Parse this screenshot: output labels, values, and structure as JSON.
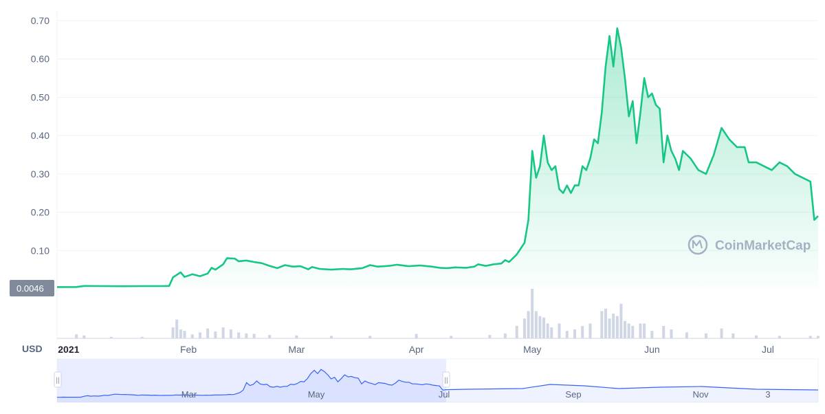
{
  "currency_label": "USD",
  "watermark": "CoinMarketCap",
  "current_price_tag": "0.0046",
  "colors": {
    "line": "#16c784",
    "fill": "#16c784",
    "volume_bar": "#cfd6e4",
    "price_tag_bg": "#808a9d",
    "navigator_line": "#3861fb",
    "navigator_selected": "#e0e6ff",
    "grid": "#eff2f5"
  },
  "chart_data": {
    "type": "area",
    "title": "",
    "xlabel": "",
    "ylabel": "",
    "ylim": [
      0,
      0.7
    ],
    "yticks": [
      0.1,
      0.2,
      0.3,
      0.4,
      0.5,
      0.6,
      0.7
    ],
    "ytick_labels": [
      "0.10",
      "0.20",
      "0.30",
      "0.40",
      "0.50",
      "0.60",
      "0.70"
    ],
    "xlim": [
      "2020-12-29",
      "2021-07-14"
    ],
    "xticks": [
      {
        "date": "2021-01-01",
        "label": "2021",
        "bold": true
      },
      {
        "date": "2021-02-01",
        "label": "Feb"
      },
      {
        "date": "2021-03-01",
        "label": "Mar"
      },
      {
        "date": "2021-04-01",
        "label": "Apr"
      },
      {
        "date": "2021-05-01",
        "label": "May"
      },
      {
        "date": "2021-06-01",
        "label": "Jun"
      },
      {
        "date": "2021-07-01",
        "label": "Jul"
      }
    ],
    "grid": true,
    "legend": "none",
    "series": [
      {
        "values": [
          [
            "2020-12-29",
            0.0046
          ],
          [
            "2021-01-03",
            0.0048
          ],
          [
            "2021-01-05",
            0.0075
          ],
          [
            "2021-01-10",
            0.0072
          ],
          [
            "2021-01-15",
            0.0068
          ],
          [
            "2021-01-20",
            0.0071
          ],
          [
            "2021-01-25",
            0.0072
          ],
          [
            "2021-01-27",
            0.0075
          ],
          [
            "2021-01-28",
            0.03
          ],
          [
            "2021-01-30",
            0.043
          ],
          [
            "2021-01-31",
            0.031
          ],
          [
            "2021-02-02",
            0.038
          ],
          [
            "2021-02-04",
            0.033
          ],
          [
            "2021-02-06",
            0.04
          ],
          [
            "2021-02-07",
            0.055
          ],
          [
            "2021-02-08",
            0.05
          ],
          [
            "2021-02-10",
            0.064
          ],
          [
            "2021-02-11",
            0.08
          ],
          [
            "2021-02-13",
            0.079
          ],
          [
            "2021-02-14",
            0.072
          ],
          [
            "2021-02-16",
            0.074
          ],
          [
            "2021-02-18",
            0.07
          ],
          [
            "2021-02-20",
            0.067
          ],
          [
            "2021-02-22",
            0.06
          ],
          [
            "2021-02-24",
            0.054
          ],
          [
            "2021-02-26",
            0.062
          ],
          [
            "2021-02-28",
            0.058
          ],
          [
            "2021-03-02",
            0.059
          ],
          [
            "2021-03-04",
            0.051
          ],
          [
            "2021-03-05",
            0.057
          ],
          [
            "2021-03-07",
            0.052
          ],
          [
            "2021-03-10",
            0.05
          ],
          [
            "2021-03-13",
            0.052
          ],
          [
            "2021-03-15",
            0.051
          ],
          [
            "2021-03-18",
            0.054
          ],
          [
            "2021-03-20",
            0.062
          ],
          [
            "2021-03-22",
            0.058
          ],
          [
            "2021-03-25",
            0.06
          ],
          [
            "2021-03-27",
            0.063
          ],
          [
            "2021-03-30",
            0.059
          ],
          [
            "2021-04-02",
            0.061
          ],
          [
            "2021-04-05",
            0.058
          ],
          [
            "2021-04-07",
            0.055
          ],
          [
            "2021-04-09",
            0.054
          ],
          [
            "2021-04-11",
            0.056
          ],
          [
            "2021-04-14",
            0.055
          ],
          [
            "2021-04-16",
            0.058
          ],
          [
            "2021-04-17",
            0.064
          ],
          [
            "2021-04-19",
            0.06
          ],
          [
            "2021-04-21",
            0.064
          ],
          [
            "2021-04-23",
            0.066
          ],
          [
            "2021-04-24",
            0.075
          ],
          [
            "2021-04-25",
            0.07
          ],
          [
            "2021-04-27",
            0.09
          ],
          [
            "2021-04-29",
            0.12
          ],
          [
            "2021-04-30",
            0.18
          ],
          [
            "2021-05-01",
            0.36
          ],
          [
            "2021-05-02",
            0.29
          ],
          [
            "2021-05-03",
            0.32
          ],
          [
            "2021-05-04",
            0.4
          ],
          [
            "2021-05-05",
            0.33
          ],
          [
            "2021-05-06",
            0.31
          ],
          [
            "2021-05-07",
            0.32
          ],
          [
            "2021-05-08",
            0.26
          ],
          [
            "2021-05-09",
            0.25
          ],
          [
            "2021-05-10",
            0.27
          ],
          [
            "2021-05-11",
            0.25
          ],
          [
            "2021-05-12",
            0.27
          ],
          [
            "2021-05-13",
            0.27
          ],
          [
            "2021-05-14",
            0.32
          ],
          [
            "2021-05-15",
            0.31
          ],
          [
            "2021-05-16",
            0.34
          ],
          [
            "2021-05-17",
            0.39
          ],
          [
            "2021-05-18",
            0.38
          ],
          [
            "2021-05-19",
            0.46
          ],
          [
            "2021-05-20",
            0.58
          ],
          [
            "2021-05-21",
            0.66
          ],
          [
            "2021-05-22",
            0.58
          ],
          [
            "2021-05-23",
            0.68
          ],
          [
            "2021-05-24",
            0.63
          ],
          [
            "2021-05-25",
            0.55
          ],
          [
            "2021-05-26",
            0.45
          ],
          [
            "2021-05-27",
            0.49
          ],
          [
            "2021-05-28",
            0.38
          ],
          [
            "2021-05-29",
            0.46
          ],
          [
            "2021-05-30",
            0.55
          ],
          [
            "2021-05-31",
            0.5
          ],
          [
            "2021-06-01",
            0.51
          ],
          [
            "2021-06-02",
            0.48
          ],
          [
            "2021-06-03",
            0.47
          ],
          [
            "2021-06-04",
            0.33
          ],
          [
            "2021-06-05",
            0.4
          ],
          [
            "2021-06-06",
            0.36
          ],
          [
            "2021-06-07",
            0.34
          ],
          [
            "2021-06-08",
            0.31
          ],
          [
            "2021-06-09",
            0.36
          ],
          [
            "2021-06-10",
            0.35
          ],
          [
            "2021-06-11",
            0.34
          ],
          [
            "2021-06-13",
            0.31
          ],
          [
            "2021-06-15",
            0.3
          ],
          [
            "2021-06-17",
            0.35
          ],
          [
            "2021-06-19",
            0.42
          ],
          [
            "2021-06-21",
            0.39
          ],
          [
            "2021-06-23",
            0.37
          ],
          [
            "2021-06-25",
            0.37
          ],
          [
            "2021-06-26",
            0.33
          ],
          [
            "2021-06-28",
            0.33
          ],
          [
            "2021-06-30",
            0.32
          ],
          [
            "2021-07-02",
            0.31
          ],
          [
            "2021-07-04",
            0.33
          ],
          [
            "2021-07-06",
            0.32
          ],
          [
            "2021-07-08",
            0.3
          ],
          [
            "2021-07-10",
            0.29
          ],
          [
            "2021-07-12",
            0.28
          ],
          [
            "2021-07-13",
            0.18
          ],
          [
            "2021-07-14",
            0.19
          ]
        ]
      }
    ],
    "volume": {
      "ylim": [
        0,
        1
      ],
      "values": [
        [
          "2021-01-03",
          0.08
        ],
        [
          "2021-01-05",
          0.06
        ],
        [
          "2021-01-12",
          0.03
        ],
        [
          "2021-01-20",
          0.03
        ],
        [
          "2021-01-28",
          0.22
        ],
        [
          "2021-01-29",
          0.38
        ],
        [
          "2021-01-30",
          0.18
        ],
        [
          "2021-01-31",
          0.15
        ],
        [
          "2021-02-02",
          0.08
        ],
        [
          "2021-02-04",
          0.12
        ],
        [
          "2021-02-06",
          0.2
        ],
        [
          "2021-02-08",
          0.14
        ],
        [
          "2021-02-10",
          0.22
        ],
        [
          "2021-02-12",
          0.18
        ],
        [
          "2021-02-14",
          0.12
        ],
        [
          "2021-02-16",
          0.1
        ],
        [
          "2021-02-18",
          0.09
        ],
        [
          "2021-02-22",
          0.07
        ],
        [
          "2021-03-01",
          0.06
        ],
        [
          "2021-03-10",
          0.05
        ],
        [
          "2021-03-20",
          0.05
        ],
        [
          "2021-04-01",
          0.09
        ],
        [
          "2021-04-10",
          0.05
        ],
        [
          "2021-04-20",
          0.07
        ],
        [
          "2021-04-24",
          0.1
        ],
        [
          "2021-04-27",
          0.25
        ],
        [
          "2021-04-29",
          0.4
        ],
        [
          "2021-04-30",
          0.55
        ],
        [
          "2021-05-01",
          1.0
        ],
        [
          "2021-05-02",
          0.55
        ],
        [
          "2021-05-03",
          0.45
        ],
        [
          "2021-05-04",
          0.42
        ],
        [
          "2021-05-05",
          0.3
        ],
        [
          "2021-05-06",
          0.22
        ],
        [
          "2021-05-08",
          0.3
        ],
        [
          "2021-05-10",
          0.15
        ],
        [
          "2021-05-12",
          0.18
        ],
        [
          "2021-05-14",
          0.25
        ],
        [
          "2021-05-16",
          0.3
        ],
        [
          "2021-05-19",
          0.55
        ],
        [
          "2021-05-20",
          0.6
        ],
        [
          "2021-05-21",
          0.4
        ],
        [
          "2021-05-22",
          0.5
        ],
        [
          "2021-05-23",
          0.45
        ],
        [
          "2021-05-24",
          0.7
        ],
        [
          "2021-05-25",
          0.35
        ],
        [
          "2021-05-26",
          0.3
        ],
        [
          "2021-05-27",
          0.25
        ],
        [
          "2021-05-29",
          0.3
        ],
        [
          "2021-05-30",
          0.3
        ],
        [
          "2021-06-01",
          0.15
        ],
        [
          "2021-06-04",
          0.25
        ],
        [
          "2021-06-06",
          0.18
        ],
        [
          "2021-06-10",
          0.12
        ],
        [
          "2021-06-15",
          0.1
        ],
        [
          "2021-06-19",
          0.2
        ],
        [
          "2021-06-22",
          0.1
        ],
        [
          "2021-06-28",
          0.06
        ],
        [
          "2021-07-04",
          0.05
        ],
        [
          "2021-07-12",
          0.05
        ],
        [
          "2021-07-14",
          0.05
        ]
      ]
    },
    "navigator": {
      "ticks": [
        "Mar",
        "May",
        "Jul",
        "Sep",
        "Nov",
        "3"
      ],
      "selection_handles": "||"
    }
  }
}
